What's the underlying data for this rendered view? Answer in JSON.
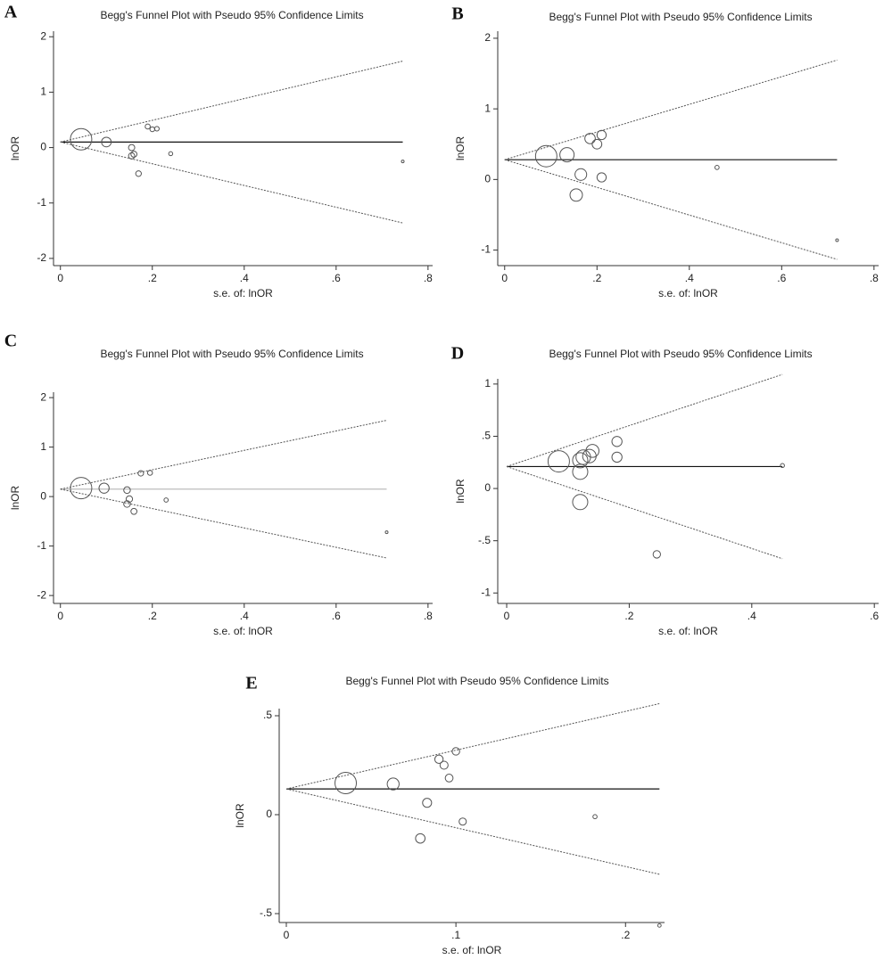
{
  "chart_data": [
    {
      "type": "funnel",
      "panel": "A",
      "title": "Begg's Funnel Plot with Pseudo 95% Confidence Limits",
      "x_label": "s.e. of: lnOR",
      "y_label": "lnOR",
      "x": [
        0.045,
        0.1,
        0.19,
        0.2,
        0.21,
        0.155,
        0.155,
        0.16,
        0.17,
        0.24,
        0.745
      ],
      "y": [
        0.15,
        0.1,
        0.38,
        0.33,
        0.34,
        0,
        -0.15,
        -0.12,
        -0.47,
        -0.11,
        -0.25
      ],
      "pooled": 0.1,
      "z": 1.96,
      "pooled_color": "#111",
      "xlim": [
        -0.015,
        0.81
      ],
      "ylim": [
        -2.13,
        2.1
      ],
      "xticks": [
        0,
        {
          "value": 0.2,
          "label": ".2"
        },
        {
          "value": 0.4,
          "label": ".4"
        },
        {
          "value": 0.6,
          "label": ".6"
        },
        {
          "value": 0.8,
          "label": ".8"
        }
      ],
      "yticks": [
        2,
        1,
        0,
        -1,
        -2
      ]
    },
    {
      "type": "funnel",
      "panel": "B",
      "title": "Begg's Funnel Plot with Pseudo 95% Confidence Limits",
      "x_label": "s.e. of: lnOR",
      "y_label": "lnOR",
      "x": [
        0.09,
        0.135,
        0.185,
        0.2,
        0.21,
        0.165,
        0.155,
        0.21,
        0.46,
        0.72
      ],
      "y": [
        0.33,
        0.35,
        0.58,
        0.5,
        0.63,
        0.07,
        -0.22,
        0.03,
        0.17,
        -0.86
      ],
      "pooled": 0.28,
      "z": 1.96,
      "pooled_color": "#111",
      "xlim": [
        -0.015,
        0.81
      ],
      "ylim": [
        -1.22,
        2.1
      ],
      "xticks": [
        0,
        {
          "value": 0.2,
          "label": ".2"
        },
        {
          "value": 0.4,
          "label": ".4"
        },
        {
          "value": 0.6,
          "label": ".6"
        },
        {
          "value": 0.8,
          "label": ".8"
        }
      ],
      "yticks": [
        2,
        1,
        0,
        -1
      ]
    },
    {
      "type": "funnel",
      "panel": "C",
      "title": "Begg's Funnel Plot with Pseudo 95% Confidence Limits",
      "x_label": "s.e. of: lnOR",
      "y_label": "lnOR",
      "x": [
        0.045,
        0.095,
        0.175,
        0.195,
        0.145,
        0.145,
        0.15,
        0.16,
        0.23,
        0.71
      ],
      "y": [
        0.17,
        0.17,
        0.47,
        0.48,
        0.13,
        -0.15,
        -0.05,
        -0.3,
        -0.07,
        -0.72
      ],
      "pooled": 0.15,
      "z": 1.96,
      "pooled_color": "#bbb",
      "xlim": [
        -0.015,
        0.81
      ],
      "ylim": [
        -2.16,
        2.11
      ],
      "xticks": [
        0,
        {
          "value": 0.2,
          "label": ".2"
        },
        {
          "value": 0.4,
          "label": ".4"
        },
        {
          "value": 0.6,
          "label": ".6"
        },
        {
          "value": 0.8,
          "label": ".8"
        }
      ],
      "yticks": [
        2,
        1,
        0,
        -1,
        -2
      ]
    },
    {
      "type": "funnel",
      "panel": "D",
      "title": "Begg's Funnel Plot with Pseudo 95% Confidence Limits",
      "x_label": "s.e. of: lnOR",
      "y_label": "lnOR",
      "x": [
        0.085,
        0.12,
        0.125,
        0.135,
        0.14,
        0.18,
        0.18,
        0.12,
        0.12,
        0.245,
        0.45
      ],
      "y": [
        0.26,
        0.27,
        0.3,
        0.31,
        0.36,
        0.45,
        0.3,
        0.16,
        -0.13,
        -0.63,
        0.22
      ],
      "pooled": 0.21,
      "z": 1.96,
      "pooled_color": "#111",
      "xlim": [
        -0.0146,
        0.607
      ],
      "ylim": [
        -1.1,
        1.05
      ],
      "xticks": [
        0,
        {
          "value": 0.2,
          "label": ".2"
        },
        {
          "value": 0.4,
          "label": ".4"
        },
        {
          "value": 0.6,
          "label": ".6"
        }
      ],
      "yticks": [
        1,
        {
          "value": 0.5,
          "label": ".5"
        },
        0,
        {
          "value": -0.5,
          "label": "-.5"
        },
        -1
      ]
    },
    {
      "type": "funnel",
      "panel": "E",
      "title": "Begg's Funnel Plot with Pseudo 95% Confidence Limits",
      "x_label": "s.e. of: lnOR",
      "y_label": "lnOR",
      "x": [
        0.035,
        0.063,
        0.09,
        0.093,
        0.1,
        0.096,
        0.083,
        0.079,
        0.104,
        0.182,
        0.22
      ],
      "y": [
        0.16,
        0.155,
        0.28,
        0.25,
        0.32,
        0.185,
        0.06,
        -0.12,
        -0.035,
        -0.01,
        -0.56
      ],
      "pooled": 0.13,
      "z": 1.96,
      "pooled_color": "#111",
      "xlim": [
        -0.0042,
        0.223
      ],
      "ylim": [
        -0.545,
        0.536
      ],
      "xticks": [
        0,
        {
          "value": 0.1,
          "label": ".1"
        },
        {
          "value": 0.2,
          "label": ".2"
        }
      ],
      "yticks": [
        {
          "value": 0.5,
          "label": ".5"
        },
        0,
        {
          "value": -0.5,
          "label": "-.5"
        }
      ]
    }
  ]
}
